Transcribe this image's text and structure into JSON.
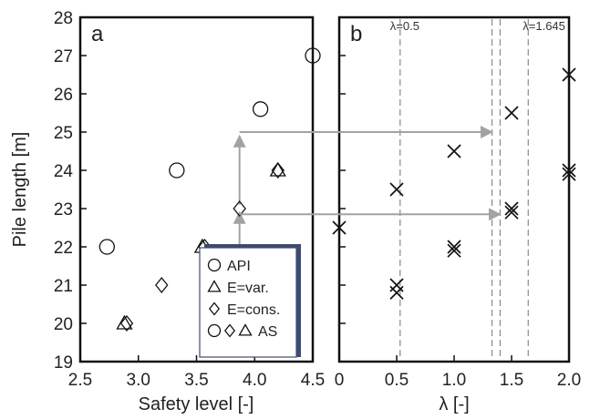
{
  "chart_data": [
    {
      "panel_label": "a",
      "type": "scatter",
      "xlabel": "Safety level [-]",
      "ylabel": "Pile length [m]",
      "xlim": [
        2.5,
        4.5
      ],
      "ylim": [
        19,
        28
      ],
      "xticks": [
        "2.5",
        "3.0",
        "3.5",
        "4.0",
        "4.5"
      ],
      "yticks": [
        "19",
        "20",
        "21",
        "22",
        "23",
        "24",
        "25",
        "26",
        "27",
        "28"
      ],
      "series": [
        {
          "name": "API",
          "marker": "circle",
          "points": [
            [
              2.73,
              22
            ],
            [
              3.33,
              24
            ],
            [
              4.05,
              25.6
            ],
            [
              4.5,
              27
            ]
          ]
        },
        {
          "name": "E=var.",
          "marker": "triangle",
          "points": [
            [
              2.88,
              20
            ],
            [
              3.55,
              22
            ],
            [
              4.2,
              24
            ]
          ]
        },
        {
          "name": "E=cons.",
          "marker": "diamond",
          "points": [
            [
              2.9,
              20
            ],
            [
              3.2,
              21
            ],
            [
              3.57,
              22
            ],
            [
              3.87,
              23
            ],
            [
              4.2,
              24
            ]
          ]
        }
      ],
      "legend": {
        "placement": "bottom-right",
        "entries": [
          {
            "label": "API",
            "markers": [
              "circle"
            ]
          },
          {
            "label": "E=var.",
            "markers": [
              "triangle"
            ]
          },
          {
            "label": "E=cons.",
            "markers": [
              "diamond"
            ]
          },
          {
            "label": "AS",
            "markers": [
              "circle",
              "diamond",
              "triangle"
            ]
          }
        ]
      },
      "arrows": [
        {
          "x": 3.87,
          "from_y": 21.3,
          "to_y": 22.9
        },
        {
          "x": 3.87,
          "from_y": 23.1,
          "to_y": 24.9
        }
      ]
    },
    {
      "panel_label": "b",
      "type": "scatter",
      "xlabel": "λ [-]",
      "ylabel": "",
      "xlim": [
        0,
        2.0
      ],
      "ylim": [
        19,
        28
      ],
      "xticks": [
        "0",
        "0.5",
        "1.0",
        "1.5",
        "2.0"
      ],
      "series": [
        {
          "name": "",
          "marker": "x",
          "points": [
            [
              0,
              22.5
            ],
            [
              0.5,
              20.8
            ],
            [
              0.5,
              21
            ],
            [
              0.5,
              23.5
            ],
            [
              1.0,
              21.9
            ],
            [
              1.0,
              22
            ],
            [
              1.0,
              24.5
            ],
            [
              1.5,
              22.9
            ],
            [
              1.5,
              23
            ],
            [
              1.5,
              25.5
            ],
            [
              2.0,
              23.9
            ],
            [
              2.0,
              24
            ],
            [
              2.0,
              26.5
            ]
          ]
        }
      ],
      "vlines": [
        {
          "x": 0.53,
          "label": "λ=0.5"
        },
        {
          "x": 1.33,
          "label": ""
        },
        {
          "x": 1.4,
          "label": ""
        },
        {
          "x": 1.645,
          "label": "λ=1.645"
        }
      ],
      "arrows": [
        {
          "from_panel": "a",
          "from_x": 3.87,
          "to_x": 1.33,
          "y": 25
        },
        {
          "from_panel": "a",
          "from_x": 3.87,
          "to_x": 1.4,
          "y": 22.85
        }
      ]
    }
  ]
}
